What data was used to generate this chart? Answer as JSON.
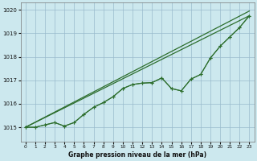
{
  "background_color": "#cce8ee",
  "plot_bg_color": "#cce8ee",
  "grid_color": "#99bbcc",
  "line_color": "#2d6e2d",
  "xlabel": "Graphe pression niveau de la mer (hPa)",
  "ylim": [
    1014.4,
    1020.3
  ],
  "xlim": [
    -0.5,
    23.5
  ],
  "yticks": [
    1015,
    1016,
    1017,
    1018,
    1019,
    1020
  ],
  "xticks": [
    0,
    1,
    2,
    3,
    4,
    5,
    6,
    7,
    8,
    9,
    10,
    11,
    12,
    13,
    14,
    15,
    16,
    17,
    18,
    19,
    20,
    21,
    22,
    23
  ],
  "hours": [
    0,
    1,
    2,
    3,
    4,
    5,
    6,
    7,
    8,
    9,
    10,
    11,
    12,
    13,
    14,
    15,
    16,
    17,
    18,
    19,
    20,
    21,
    22,
    23
  ],
  "line_data1": [
    1015.0,
    1015.0,
    1015.1,
    1015.2,
    1015.05,
    1015.2,
    1015.55,
    1015.85,
    1016.05,
    1016.3,
    1016.65,
    1016.82,
    1016.88,
    1016.9,
    1017.1,
    1016.65,
    1016.55,
    1017.05,
    1017.25,
    1017.95,
    1018.45,
    1018.85,
    1019.25,
    1019.75
  ],
  "line_data2": [
    1015.0,
    1015.0,
    1015.1,
    1015.2,
    1015.05,
    1015.2,
    1015.55,
    1015.85,
    1016.05,
    1016.3,
    1016.65,
    1016.82,
    1016.88,
    1016.9,
    1017.1,
    1016.65,
    1016.55,
    1017.05,
    1017.25,
    1017.95,
    1018.45,
    1018.85,
    1019.25,
    1019.75
  ],
  "straight_line1": [
    1015.0,
    1019.75
  ],
  "straight_line2": [
    1015.0,
    1019.95
  ]
}
